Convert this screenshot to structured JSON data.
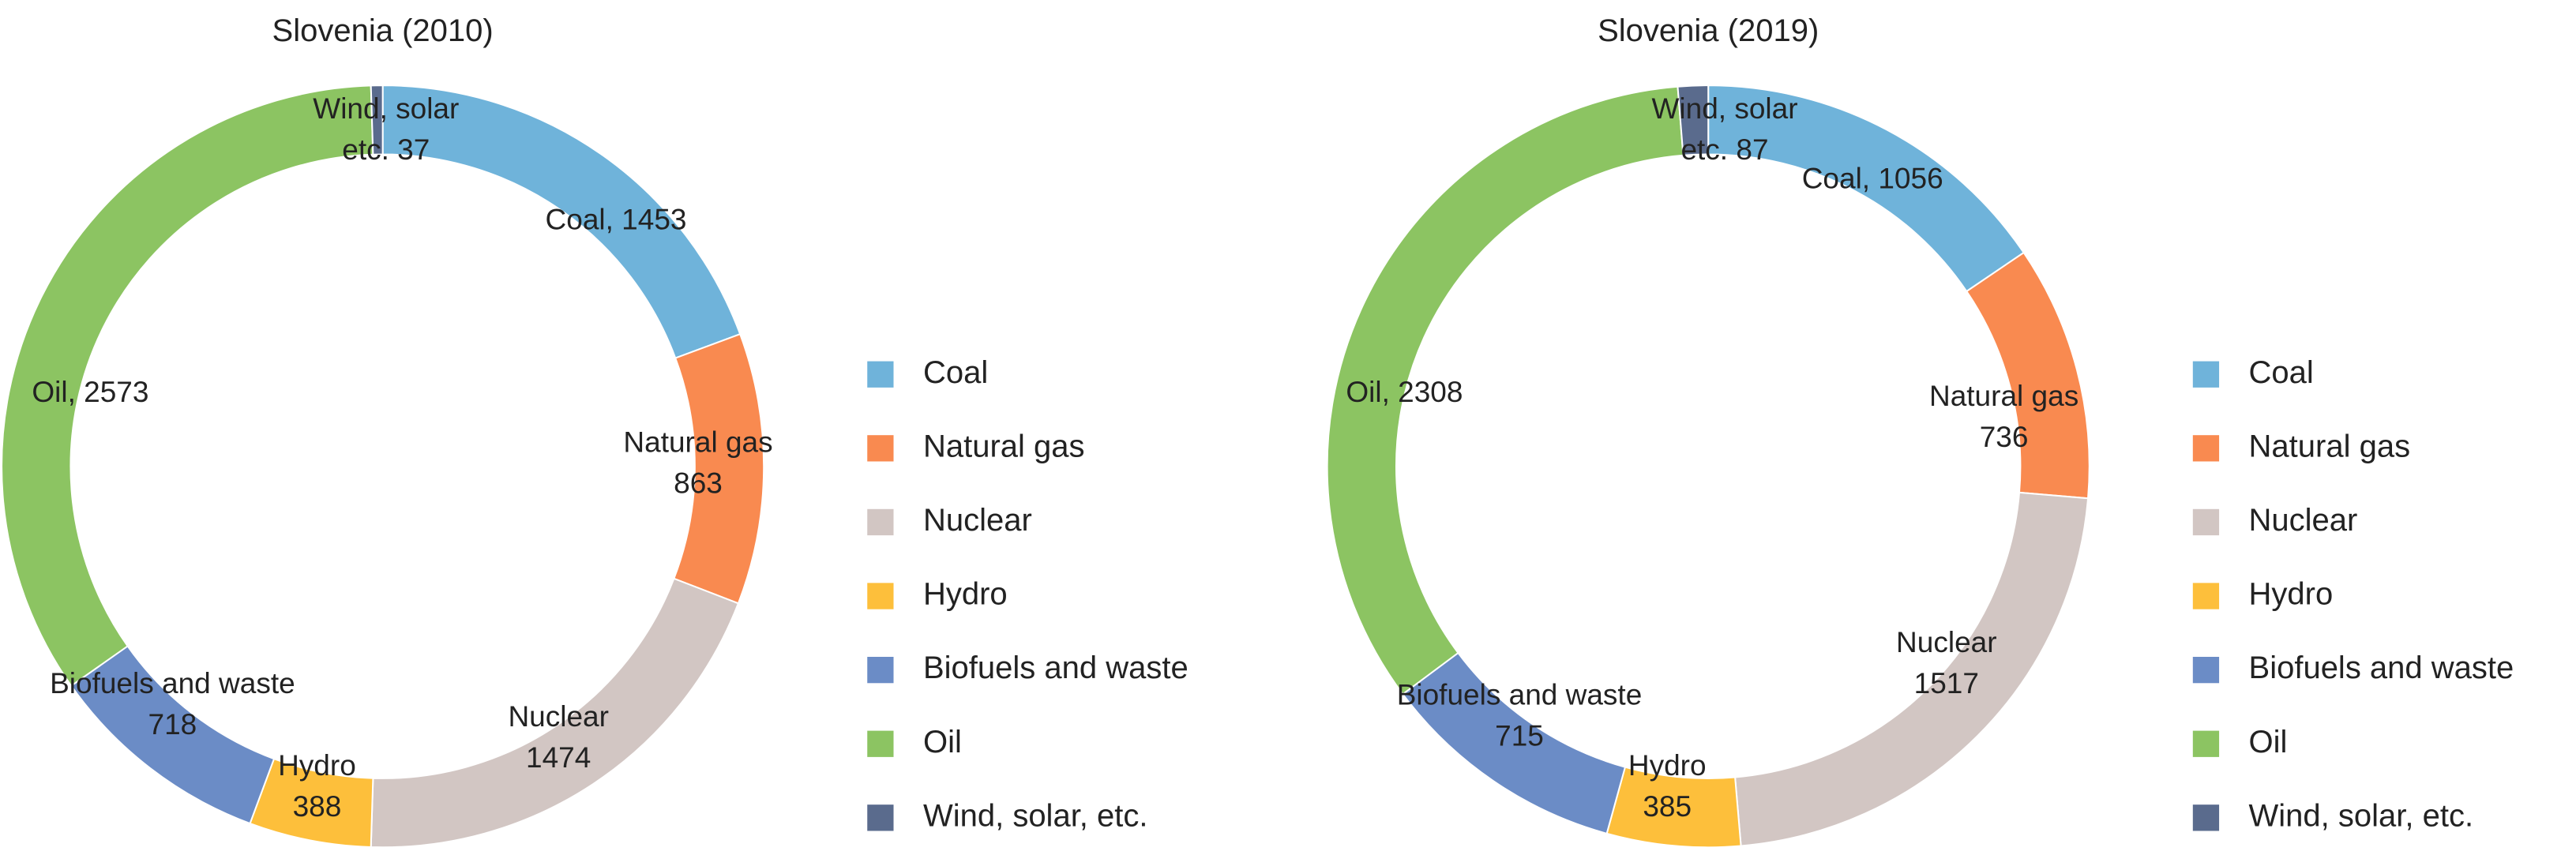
{
  "chart_data": [
    {
      "type": "pie",
      "donut": true,
      "title": "Slovenia (2010)",
      "categories": [
        "Coal",
        "Natural gas",
        "Nuclear",
        "Hydro",
        "Biofuels and waste",
        "Oil",
        "Wind, solar, etc."
      ],
      "values": [
        1453,
        863,
        1474,
        388,
        718,
        2573,
        37
      ],
      "value_labels": [
        [
          "Coal, 1453"
        ],
        [
          "Natural gas",
          "863"
        ],
        [
          "Nuclear",
          "1474"
        ],
        [
          "Hydro",
          "388"
        ],
        [
          "Biofuels and waste",
          "718"
        ],
        [
          "Oil, 2573"
        ],
        [
          "Wind, solar",
          "etc. 37"
        ]
      ],
      "colors": [
        "#6fb3da",
        "#f98a50",
        "#d2c6c3",
        "#fdbf3b",
        "#6b8cc6",
        "#8cc462",
        "#5a6b8d"
      ]
    },
    {
      "type": "pie",
      "donut": true,
      "title": "Slovenia (2019)",
      "categories": [
        "Coal",
        "Natural gas",
        "Nuclear",
        "Hydro",
        "Biofuels and waste",
        "Oil",
        "Wind, solar, etc."
      ],
      "values": [
        1056,
        736,
        1517,
        385,
        715,
        2308,
        87
      ],
      "value_labels": [
        [
          "Coal, 1056"
        ],
        [
          "Natural gas",
          "736"
        ],
        [
          "Nuclear",
          "1517"
        ],
        [
          "Hydro",
          "385"
        ],
        [
          "Biofuels and waste",
          "715"
        ],
        [
          "Oil, 2308"
        ],
        [
          "Wind, solar",
          "etc. 87"
        ]
      ],
      "colors": [
        "#6fb3da",
        "#f98a50",
        "#d2c6c3",
        "#fdbf3b",
        "#6b8cc6",
        "#8cc462",
        "#5a6b8d"
      ]
    }
  ]
}
